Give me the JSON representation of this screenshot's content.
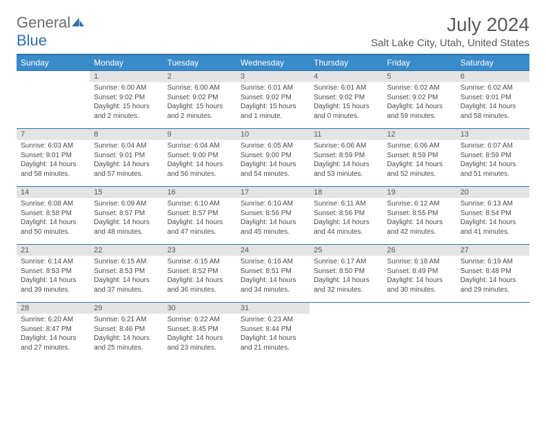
{
  "brand": {
    "part1": "General",
    "part2": "Blue"
  },
  "title": "July 2024",
  "location": "Salt Lake City, Utah, United States",
  "colors": {
    "header_bg": "#3a8bc9",
    "header_text": "#ffffff",
    "rule": "#2f6fab",
    "daynum_bg": "#e4e4e4",
    "text": "#5a5a5a"
  },
  "columns": [
    "Sunday",
    "Monday",
    "Tuesday",
    "Wednesday",
    "Thursday",
    "Friday",
    "Saturday"
  ],
  "weeks": [
    [
      null,
      {
        "n": "1",
        "sr": "6:00 AM",
        "ss": "9:02 PM",
        "dl": "15 hours and 2 minutes."
      },
      {
        "n": "2",
        "sr": "6:00 AM",
        "ss": "9:02 PM",
        "dl": "15 hours and 2 minutes."
      },
      {
        "n": "3",
        "sr": "6:01 AM",
        "ss": "9:02 PM",
        "dl": "15 hours and 1 minute."
      },
      {
        "n": "4",
        "sr": "6:01 AM",
        "ss": "9:02 PM",
        "dl": "15 hours and 0 minutes."
      },
      {
        "n": "5",
        "sr": "6:02 AM",
        "ss": "9:02 PM",
        "dl": "14 hours and 59 minutes."
      },
      {
        "n": "6",
        "sr": "6:02 AM",
        "ss": "9:01 PM",
        "dl": "14 hours and 58 minutes."
      }
    ],
    [
      {
        "n": "7",
        "sr": "6:03 AM",
        "ss": "9:01 PM",
        "dl": "14 hours and 58 minutes."
      },
      {
        "n": "8",
        "sr": "6:04 AM",
        "ss": "9:01 PM",
        "dl": "14 hours and 57 minutes."
      },
      {
        "n": "9",
        "sr": "6:04 AM",
        "ss": "9:00 PM",
        "dl": "14 hours and 56 minutes."
      },
      {
        "n": "10",
        "sr": "6:05 AM",
        "ss": "9:00 PM",
        "dl": "14 hours and 54 minutes."
      },
      {
        "n": "11",
        "sr": "6:06 AM",
        "ss": "8:59 PM",
        "dl": "14 hours and 53 minutes."
      },
      {
        "n": "12",
        "sr": "6:06 AM",
        "ss": "8:59 PM",
        "dl": "14 hours and 52 minutes."
      },
      {
        "n": "13",
        "sr": "6:07 AM",
        "ss": "8:59 PM",
        "dl": "14 hours and 51 minutes."
      }
    ],
    [
      {
        "n": "14",
        "sr": "6:08 AM",
        "ss": "8:58 PM",
        "dl": "14 hours and 50 minutes."
      },
      {
        "n": "15",
        "sr": "6:09 AM",
        "ss": "8:57 PM",
        "dl": "14 hours and 48 minutes."
      },
      {
        "n": "16",
        "sr": "6:10 AM",
        "ss": "8:57 PM",
        "dl": "14 hours and 47 minutes."
      },
      {
        "n": "17",
        "sr": "6:10 AM",
        "ss": "8:56 PM",
        "dl": "14 hours and 45 minutes."
      },
      {
        "n": "18",
        "sr": "6:11 AM",
        "ss": "8:56 PM",
        "dl": "14 hours and 44 minutes."
      },
      {
        "n": "19",
        "sr": "6:12 AM",
        "ss": "8:55 PM",
        "dl": "14 hours and 42 minutes."
      },
      {
        "n": "20",
        "sr": "6:13 AM",
        "ss": "8:54 PM",
        "dl": "14 hours and 41 minutes."
      }
    ],
    [
      {
        "n": "21",
        "sr": "6:14 AM",
        "ss": "8:53 PM",
        "dl": "14 hours and 39 minutes."
      },
      {
        "n": "22",
        "sr": "6:15 AM",
        "ss": "8:53 PM",
        "dl": "14 hours and 37 minutes."
      },
      {
        "n": "23",
        "sr": "6:15 AM",
        "ss": "8:52 PM",
        "dl": "14 hours and 36 minutes."
      },
      {
        "n": "24",
        "sr": "6:16 AM",
        "ss": "8:51 PM",
        "dl": "14 hours and 34 minutes."
      },
      {
        "n": "25",
        "sr": "6:17 AM",
        "ss": "8:50 PM",
        "dl": "14 hours and 32 minutes."
      },
      {
        "n": "26",
        "sr": "6:18 AM",
        "ss": "8:49 PM",
        "dl": "14 hours and 30 minutes."
      },
      {
        "n": "27",
        "sr": "6:19 AM",
        "ss": "8:48 PM",
        "dl": "14 hours and 29 minutes."
      }
    ],
    [
      {
        "n": "28",
        "sr": "6:20 AM",
        "ss": "8:47 PM",
        "dl": "14 hours and 27 minutes."
      },
      {
        "n": "29",
        "sr": "6:21 AM",
        "ss": "8:46 PM",
        "dl": "14 hours and 25 minutes."
      },
      {
        "n": "30",
        "sr": "6:22 AM",
        "ss": "8:45 PM",
        "dl": "14 hours and 23 minutes."
      },
      {
        "n": "31",
        "sr": "6:23 AM",
        "ss": "8:44 PM",
        "dl": "14 hours and 21 minutes."
      },
      null,
      null,
      null
    ]
  ],
  "labels": {
    "sunrise": "Sunrise:",
    "sunset": "Sunset:",
    "daylight": "Daylight:"
  }
}
